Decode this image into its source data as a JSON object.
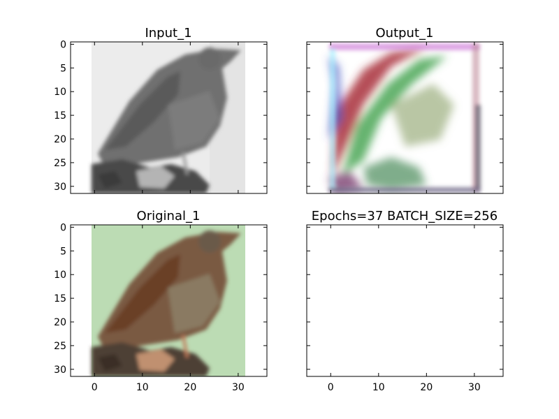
{
  "chart_data": [
    {
      "type": "image",
      "title": "Input_1",
      "content": "grayscale bird perched on rock",
      "xlim": [
        -5,
        36
      ],
      "ylim": [
        31.5,
        -0.5
      ],
      "xticks": [],
      "yticks": [
        0,
        5,
        10,
        15,
        20,
        25,
        30
      ],
      "image_extent": {
        "x": [
          -0.5,
          31.5
        ],
        "y": [
          -0.5,
          31.5
        ]
      },
      "colors": {
        "background": "#ececec",
        "bird": "#6e6e6e",
        "rock": "#4a4a4a"
      }
    },
    {
      "type": "image",
      "title": "Output_1",
      "content": "blurry colorized reconstruction",
      "xlim": [
        -5,
        36
      ],
      "ylim": [
        31.5,
        -0.5
      ],
      "xticks": [],
      "yticks": [],
      "image_extent": {
        "x": [
          -0.5,
          31.5
        ],
        "y": [
          -0.5,
          31.5
        ]
      },
      "colors": {
        "background": "#ffffff",
        "red": "#a8303a",
        "green": "#3fa04a",
        "blue": "#3a4fc0",
        "magenta": "#d080d8",
        "cyan": "#a0f0ff"
      }
    },
    {
      "type": "image",
      "title": "Original_1",
      "content": "color bird perched on rock",
      "xlim": [
        -5,
        36
      ],
      "ylim": [
        31.5,
        -0.5
      ],
      "xticks": [
        0,
        10,
        20,
        30
      ],
      "yticks": [
        0,
        5,
        10,
        15,
        20,
        25,
        30
      ],
      "image_extent": {
        "x": [
          -0.5,
          31.5
        ],
        "y": [
          -0.5,
          31.5
        ]
      },
      "colors": {
        "background": "#bcdcb4",
        "bird": "#7a5a42",
        "rock": "#4e4036"
      }
    },
    {
      "type": "empty",
      "title": "Epochs=37 BATCH_SIZE=256",
      "xlim": [
        -5,
        36
      ],
      "ylim": [
        31.5,
        -0.5
      ],
      "xticks": [
        0,
        10,
        20,
        30
      ],
      "yticks": []
    }
  ]
}
